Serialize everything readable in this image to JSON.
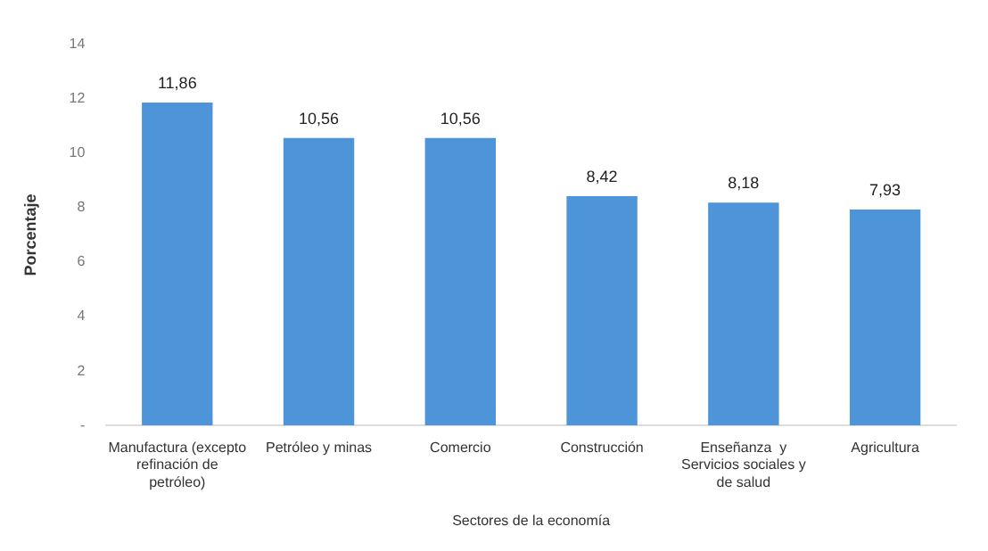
{
  "chart_data": {
    "type": "bar",
    "xlabel": "Sectores de la economía",
    "ylabel": "Porcentaje",
    "categories": [
      "Manufactura (excepto refinación de petróleo)",
      "Petróleo y minas",
      "Comercio",
      "Construcción",
      "Enseñanza  y Servicios sociales y de salud",
      "Agricultura"
    ],
    "values": [
      11.86,
      10.56,
      10.56,
      8.42,
      8.18,
      7.93
    ],
    "value_labels": [
      "11,86",
      "10,56",
      "10,56",
      "8,42",
      "8,18",
      "7,93"
    ],
    "color": "#4e94d8",
    "ylim": [
      0,
      14
    ],
    "yticks": [
      {
        "value": 0,
        "label": "-"
      },
      2,
      4,
      6,
      8,
      10,
      12,
      14
    ],
    "grid": false,
    "legend": false
  }
}
